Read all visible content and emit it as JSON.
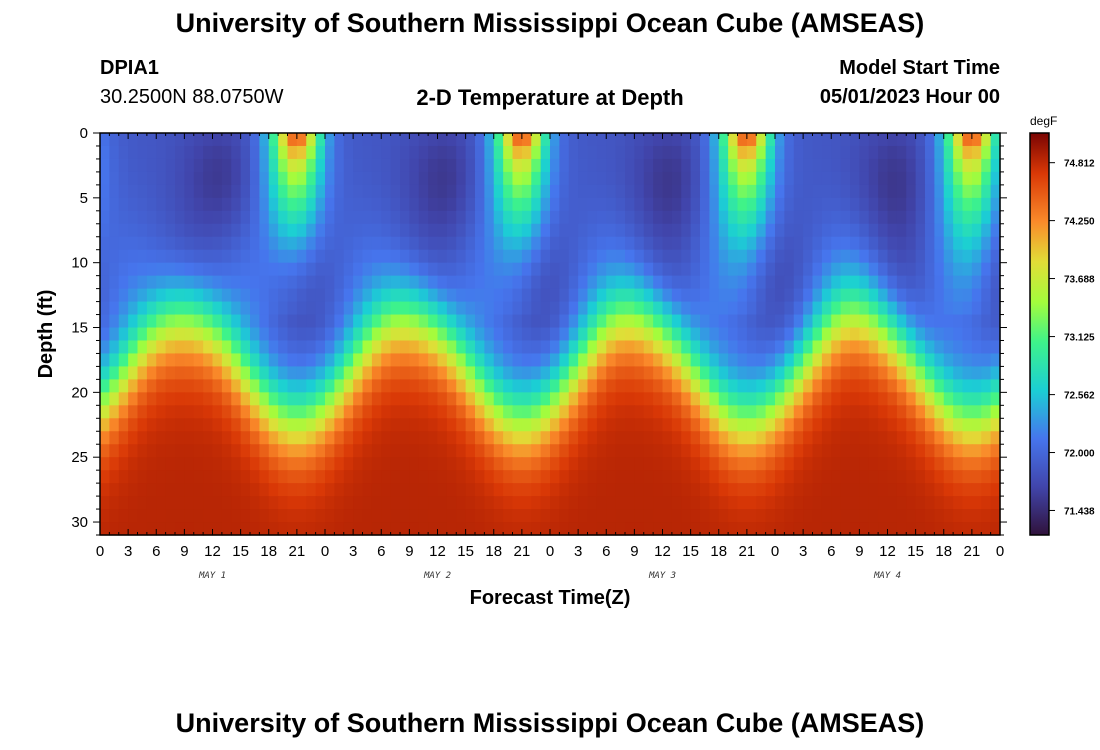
{
  "header": {
    "title": "University of Southern Mississippi Ocean Cube (AMSEAS)",
    "station": "DPIA1",
    "coords": "30.2500N  88.0750W",
    "product": "2-D Temperature at Depth",
    "model_label": "Model Start Time",
    "model_time": "05/01/2023 Hour 00"
  },
  "footer": {
    "title": "University of Southern Mississippi Ocean Cube (AMSEAS)"
  },
  "chart_data": {
    "type": "heatmap",
    "title": "2-D Temperature at Depth",
    "xlabel": "Forecast Time(Z)",
    "ylabel": "Depth (ft)",
    "x_range_hours": [
      0,
      96
    ],
    "y_range_ft": [
      0,
      31
    ],
    "x_tick_labels": [
      "0",
      "3",
      "6",
      "9",
      "12",
      "15",
      "18",
      "21",
      "0",
      "3",
      "6",
      "9",
      "12",
      "15",
      "18",
      "21",
      "0",
      "3",
      "6",
      "9",
      "12",
      "15",
      "18",
      "21",
      "0",
      "3",
      "6",
      "9",
      "12",
      "15",
      "18",
      "21",
      "0"
    ],
    "y_ticks": [
      0,
      5,
      10,
      15,
      20,
      25,
      30
    ],
    "y_tick_labels": [
      "0",
      "5",
      "10",
      "15",
      "20",
      "25",
      "30"
    ],
    "day_labels": [
      "MAY 1",
      "MAY 2",
      "MAY 3",
      "MAY 4"
    ],
    "colorbar": {
      "unit": "degF",
      "range": [
        71.2,
        75.1
      ],
      "tick_values": [
        71.438,
        72.0,
        72.562,
        73.125,
        73.688,
        74.25,
        74.812
      ],
      "tick_labels": [
        "71.438",
        "72.000",
        "72.562",
        "73.125",
        "73.688",
        "74.250",
        "74.812"
      ]
    },
    "surface_warm_events_hours": [
      21,
      45,
      69,
      93
    ],
    "grid": false
  }
}
